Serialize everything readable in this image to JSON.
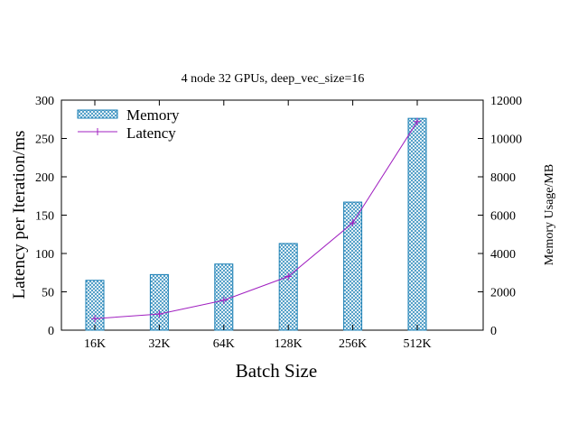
{
  "chart_data": {
    "type": "bar",
    "title": "4 node 32 GPUs, deep_vec_size=16",
    "xlabel": "Batch Size",
    "ylabel_left": "Latency per Iteration/ms",
    "ylabel_right": "Memory Usage/MB",
    "categories": [
      "16K",
      "32K",
      "64K",
      "128K",
      "256K",
      "512K"
    ],
    "y_left_lim": [
      0,
      300
    ],
    "y_left_ticks": [
      0,
      50,
      100,
      150,
      200,
      250,
      300
    ],
    "y_right_lim": [
      0,
      12000
    ],
    "y_right_ticks": [
      0,
      2000,
      4000,
      6000,
      8000,
      10000,
      12000
    ],
    "legend_position": "top-left",
    "grid": false,
    "series": [
      {
        "name": "Memory",
        "type": "bar",
        "axis": "right",
        "color": "#1a7fb5",
        "fill_pattern": "crosshatch",
        "values": [
          2600,
          2900,
          3450,
          4520,
          6680,
          11050
        ]
      },
      {
        "name": "Latency",
        "type": "line",
        "axis": "left",
        "color": "#a020c0",
        "marker": "+",
        "values": [
          15,
          21,
          39,
          70,
          140,
          272
        ]
      }
    ]
  }
}
